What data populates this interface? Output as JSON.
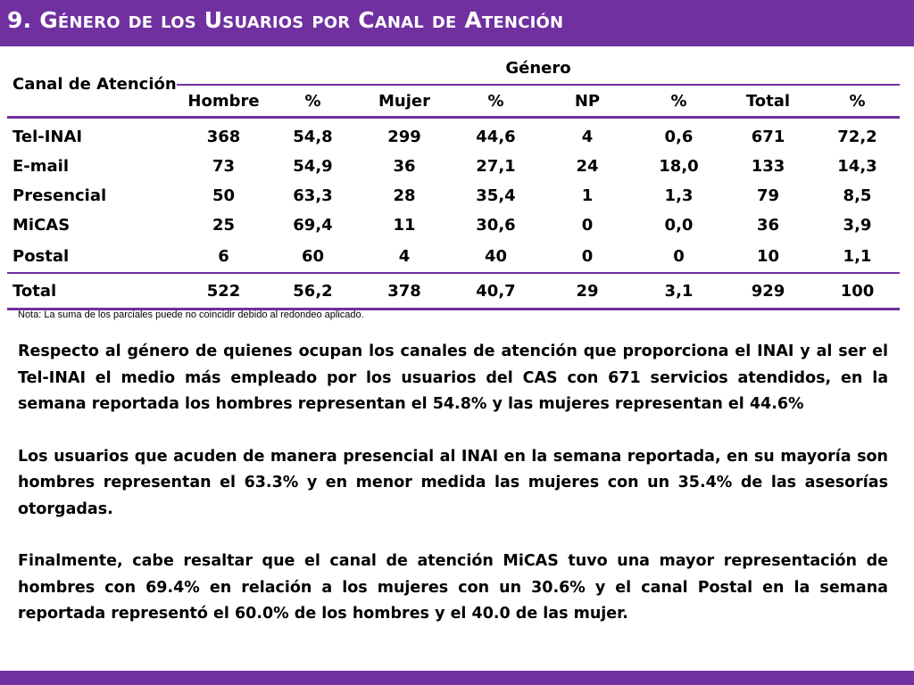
{
  "header": {
    "title": "9. Género de los Usuarios por Canal de Atención"
  },
  "table": {
    "canal_header": "Canal de Atención",
    "genero_header": "Género",
    "columns": [
      "Hombre",
      "%",
      "Mujer",
      "%",
      "NP",
      "%",
      "Total",
      "%"
    ],
    "rows": [
      {
        "label": "Tel-INAI",
        "values": [
          "368",
          "54,8",
          "299",
          "44,6",
          "4",
          "0,6",
          "671",
          "72,2"
        ]
      },
      {
        "label": "E-mail",
        "values": [
          "73",
          "54,9",
          "36",
          "27,1",
          "24",
          "18,0",
          "133",
          "14,3"
        ]
      },
      {
        "label": "Presencial",
        "values": [
          "50",
          "63,3",
          "28",
          "35,4",
          "1",
          "1,3",
          "79",
          "8,5"
        ]
      },
      {
        "label": "MiCAS",
        "values": [
          "25",
          "69,4",
          "11",
          "30,6",
          "0",
          "0,0",
          "36",
          "3,9"
        ]
      },
      {
        "label": "Postal",
        "values": [
          "6",
          "60",
          "4",
          "40",
          "0",
          "0",
          "10",
          "1,1"
        ]
      },
      {
        "label": "Total",
        "values": [
          "522",
          "56,2",
          "378",
          "40,7",
          "29",
          "3,1",
          "929",
          "100"
        ]
      }
    ]
  },
  "note": "Nota: La suma de los parciales puede no coincidir debido al redondeo aplicado.",
  "paragraphs": [
    "Respecto al género de quienes ocupan los canales de atención que proporciona el INAI y al ser el Tel-INAI el medio más empleado por los usuarios del CAS con 671 servicios atendidos, en la semana reportada los hombres representan el 54.8%  y las mujeres representan el 44.6%",
    "Los usuarios que acuden de manera presencial al INAI en la semana reportada, en su mayoría son hombres representan el 63.3% y en menor medida las mujeres con un 35.4% de las asesorías otorgadas.",
    "Finalmente, cabe resaltar que el canal de atención MiCAS tuvo una  mayor representación de hombres con 69.4% en relación a los mujeres con un 30.6% y el canal Postal en la semana reportada representó el 60.0% de los hombres y el 40.0 de las mujer."
  ],
  "colors": {
    "accent": "#7030a0",
    "text": "#000000",
    "background": "#ffffff"
  }
}
